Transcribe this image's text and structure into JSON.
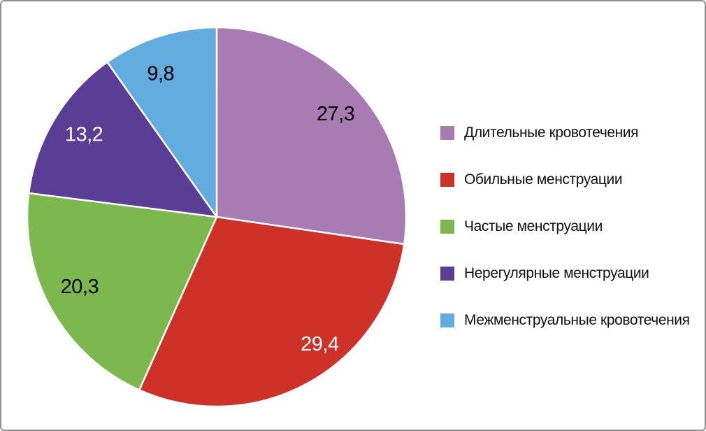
{
  "frame": {
    "background": "#FFFFFF",
    "border_color": "#8F8F8F"
  },
  "chart_data": {
    "type": "pie",
    "title": "",
    "start_angle_deg": 0,
    "direction": "clockwise",
    "legend_position": "right",
    "value_format": "decimal-comma",
    "separator_color": "#FFFFFF",
    "slices": [
      {
        "label": "Длительные кровотечения",
        "value": 27.3,
        "display": "27,3",
        "color": "#A87CB3",
        "label_color": "#000000"
      },
      {
        "label": "Обильные менструации",
        "value": 29.4,
        "display": "29,4",
        "color": "#CE3128",
        "label_color": "#FFFFFF"
      },
      {
        "label": "Частые менструации",
        "value": 20.3,
        "display": "20,3",
        "color": "#7CB84D",
        "label_color": "#000000"
      },
      {
        "label": "Нерегулярные менструации",
        "value": 13.2,
        "display": "13,2",
        "color": "#5A3D94",
        "label_color": "#FFFFFF"
      },
      {
        "label": "Межменструальные кровотечения",
        "value": 9.8,
        "display": "9,8",
        "color": "#62ACE0",
        "label_color": "#000000"
      }
    ]
  }
}
